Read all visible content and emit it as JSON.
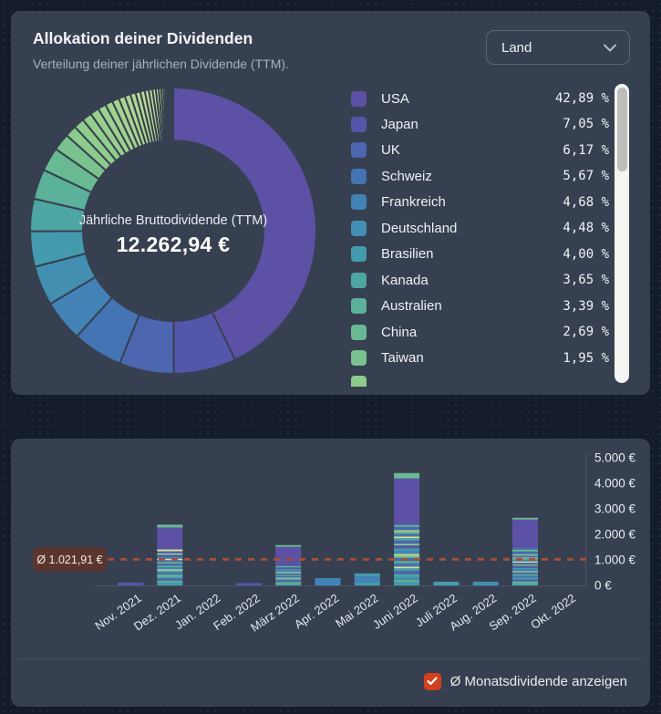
{
  "header": {
    "title": "Allokation deiner Dividenden",
    "subtitle": "Verteilung deiner jährlichen Dividende (TTM).",
    "dropdown_value": "Land"
  },
  "footer": {
    "checkbox_label": "Ø Monatsdividende anzeigen",
    "checkbox_checked": true,
    "checkbox_color": "#d2401e"
  },
  "colors": {
    "page_bg": "#141c2b",
    "card_bg": "#374050",
    "axis_line": "#4a5565",
    "avg_line": "#a34e38",
    "avg_badge_bg": "#5c362e",
    "scroll_track": "#f4f4f3",
    "scroll_thumb": "#bdbdbb"
  },
  "chart_data": [
    {
      "type": "pie",
      "variant": "donut",
      "title": "Allokation deiner Dividenden (Land)",
      "center_label": "Jährliche Bruttodividende (TTM)",
      "center_value": "12.262,94 €",
      "legend_position": "right",
      "items": [
        {
          "label": "USA",
          "pct": "42,89 %",
          "value": 42.89,
          "color": "#5d51a5"
        },
        {
          "label": "Japan",
          "pct": "7,05 %",
          "value": 7.05,
          "color": "#5457a9"
        },
        {
          "label": "UK",
          "pct": "6,17 %",
          "value": 6.17,
          "color": "#4d66b0"
        },
        {
          "label": "Schweiz",
          "pct": "5,67 %",
          "value": 5.67,
          "color": "#4574b4"
        },
        {
          "label": "Frankreich",
          "pct": "4,68 %",
          "value": 4.68,
          "color": "#4282b6"
        },
        {
          "label": "Deutschland",
          "pct": "4,48 %",
          "value": 4.48,
          "color": "#428fb2"
        },
        {
          "label": "Brasilien",
          "pct": "4,00 %",
          "value": 4.0,
          "color": "#449bad"
        },
        {
          "label": "Kanada",
          "pct": "3,65 %",
          "value": 3.65,
          "color": "#4ea6a2"
        },
        {
          "label": "Australien",
          "pct": "3,39 %",
          "value": 3.39,
          "color": "#5bb19a"
        },
        {
          "label": "China",
          "pct": "2,69 %",
          "value": 2.69,
          "color": "#69ba93"
        },
        {
          "label": "Taiwan",
          "pct": "1,95 %",
          "value": 1.95,
          "color": "#7ac28e"
        }
      ],
      "other_slices": {
        "total_pct": 13.38,
        "color_start": "#8ccb8b",
        "color_end": "#f2efa1",
        "weights": [
          1.2,
          1.1,
          1.0,
          0.92,
          0.85,
          0.78,
          0.72,
          0.66,
          0.6,
          0.55,
          0.5,
          0.46,
          0.42,
          0.38,
          0.34,
          0.3,
          0.27,
          0.24,
          0.21,
          0.18,
          0.15,
          0.13,
          0.11,
          0.09,
          0.07,
          0.05
        ]
      },
      "partial_next_item_color": "#8ccb8b"
    },
    {
      "type": "bar",
      "stacked": true,
      "ylim": [
        0,
        5000
      ],
      "y_ticks": [
        "0 €",
        "1.000 €",
        "2.000 €",
        "3.000 €",
        "4.000 €",
        "5.000 €"
      ],
      "average": {
        "label": "Ø 1.021,91 €",
        "value": 1021.91
      },
      "palette": [
        "#5d51a5",
        "#5457a9",
        "#4d66b0",
        "#4574b4",
        "#4283b7",
        "#428fb2",
        "#449bad",
        "#4ea6a2",
        "#5bb19a",
        "#69ba93",
        "#7ac28e",
        "#8ccb8b",
        "#a3d28d",
        "#c0da90",
        "#d9e294",
        "#edea9c"
      ],
      "bars": [
        {
          "month": "Nov. 2021",
          "total": 110,
          "segments": [
            [
              1,
              110
            ]
          ]
        },
        {
          "month": "Dez. 2021",
          "total": 2380,
          "segments": [
            [
              6,
              110
            ],
            [
              8,
              80
            ],
            [
              2,
              95
            ],
            [
              7,
              70
            ],
            [
              9,
              65
            ],
            [
              3,
              85
            ],
            [
              6,
              70
            ],
            [
              13,
              50
            ],
            [
              4,
              85
            ],
            [
              8,
              65
            ],
            [
              2,
              80
            ],
            [
              9,
              60
            ],
            [
              3,
              75
            ],
            [
              14,
              55
            ],
            [
              5,
              70
            ],
            [
              1,
              85
            ],
            [
              12,
              50
            ],
            [
              2,
              90
            ],
            [
              14,
              70
            ],
            [
              0,
              860
            ],
            [
              9,
              110
            ]
          ]
        },
        {
          "month": "Jan. 2022",
          "total": 0,
          "segments": []
        },
        {
          "month": "Feb. 2022",
          "total": 95,
          "segments": [
            [
              1,
              95
            ]
          ]
        },
        {
          "month": "März 2022",
          "total": 1580,
          "segments": [
            [
              7,
              75
            ],
            [
              9,
              55
            ],
            [
              2,
              70
            ],
            [
              6,
              60
            ],
            [
              13,
              40
            ],
            [
              3,
              65
            ],
            [
              8,
              55
            ],
            [
              2,
              65
            ],
            [
              14,
              40
            ],
            [
              4,
              60
            ],
            [
              6,
              55
            ],
            [
              1,
              65
            ],
            [
              9,
              50
            ],
            [
              2,
              45
            ],
            [
              0,
              710
            ],
            [
              9,
              70
            ]
          ]
        },
        {
          "month": "Apr. 2022",
          "total": 285,
          "segments": [
            [
              4,
              285
            ]
          ]
        },
        {
          "month": "Mai 2022",
          "total": 470,
          "segments": [
            [
              6,
              120
            ],
            [
              4,
              230
            ],
            [
              6,
              120
            ]
          ]
        },
        {
          "month": "Juni 2022",
          "total": 4400,
          "segments": [
            [
              6,
              130
            ],
            [
              8,
              95
            ],
            [
              5,
              115
            ],
            [
              7,
              100
            ],
            [
              2,
              125
            ],
            [
              6,
              105
            ],
            [
              14,
              65
            ],
            [
              3,
              135
            ],
            [
              8,
              90
            ],
            [
              2,
              115
            ],
            [
              9,
              85
            ],
            [
              13,
              75
            ],
            [
              4,
              125
            ],
            [
              6,
              95
            ],
            [
              1,
              115
            ],
            [
              11,
              65
            ],
            [
              2,
              125
            ],
            [
              7,
              95
            ],
            [
              14,
              60
            ],
            [
              3,
              110
            ],
            [
              9,
              80
            ],
            [
              12,
              65
            ],
            [
              2,
              120
            ],
            [
              8,
              80
            ],
            [
              0,
              1820
            ],
            [
              9,
              210
            ]
          ]
        },
        {
          "month": "Juli 2022",
          "total": 145,
          "segments": [
            [
              6,
              145
            ]
          ]
        },
        {
          "month": "Aug. 2022",
          "total": 145,
          "segments": [
            [
              5,
              145
            ]
          ]
        },
        {
          "month": "Sep. 2022",
          "total": 2650,
          "segments": [
            [
              7,
              90
            ],
            [
              9,
              65
            ],
            [
              2,
              80
            ],
            [
              6,
              70
            ],
            [
              3,
              75
            ],
            [
              8,
              60
            ],
            [
              2,
              75
            ],
            [
              13,
              45
            ],
            [
              4,
              70
            ],
            [
              6,
              60
            ],
            [
              1,
              75
            ],
            [
              9,
              55
            ],
            [
              2,
              70
            ],
            [
              14,
              50
            ],
            [
              5,
              65
            ],
            [
              8,
              55
            ],
            [
              12,
              40
            ],
            [
              2,
              65
            ],
            [
              13,
              35
            ],
            [
              6,
              50
            ],
            [
              2,
              80
            ],
            [
              9,
              70
            ],
            [
              3,
              80
            ],
            [
              0,
              1100
            ],
            [
              9,
              70
            ]
          ]
        },
        {
          "month": "Okt. 2022",
          "total": 0,
          "segments": []
        }
      ]
    }
  ]
}
